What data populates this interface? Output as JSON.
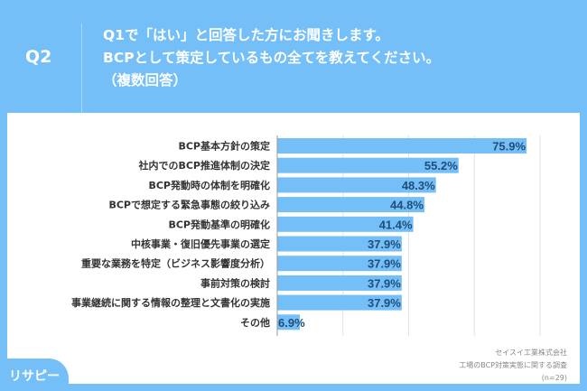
{
  "header": {
    "question_no": "Q2",
    "lines": [
      "Q1で「はい」と回答した方にお聞きします。",
      "BCPとして策定しているもの全てを教えてください。",
      "（複数回答）"
    ]
  },
  "chart_data": {
    "type": "bar",
    "orientation": "horizontal",
    "categories": [
      "BCP基本方針の策定",
      "社内でのBCP推進体制の決定",
      "BCP発動時の体制を明確化",
      "BCPで想定する緊急事態の絞り込み",
      "BCP発動基準の明確化",
      "中核事業・復旧優先事業の選定",
      "重要な業務を特定（ビジネス影響度分析）",
      "事前対策の検討",
      "事業継続に関する情報の整理と文書化の実施",
      "その他"
    ],
    "values": [
      75.9,
      55.2,
      48.3,
      44.8,
      41.4,
      37.9,
      37.9,
      37.9,
      37.9,
      6.9
    ],
    "labels": [
      "75.9%",
      "55.2%",
      "48.3%",
      "44.8%",
      "41.4%",
      "37.9%",
      "37.9%",
      "37.9%",
      "37.9%",
      "6.9%"
    ],
    "xlim": [
      0,
      80
    ],
    "grid": true,
    "bar_color": "#74bff8",
    "label_color": "#1f4e79"
  },
  "source": {
    "company": "セイスイ工業株式会社",
    "survey": "工場のBCP対策実態に関する調査",
    "n": "(n=29)"
  },
  "logo": {
    "text": "リサピー"
  },
  "colors": {
    "background": "#74bff8"
  }
}
